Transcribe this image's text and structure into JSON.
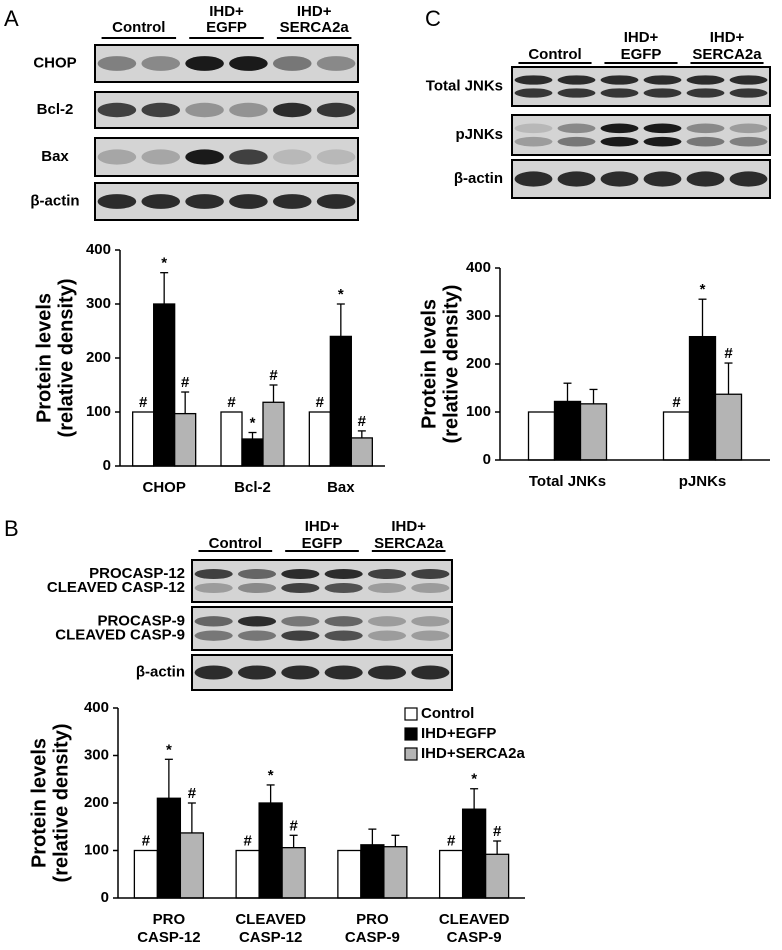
{
  "blots": [
    {
      "letter": "A",
      "groups": [
        [
          "Control"
        ],
        [
          "IHD+",
          "EGFP"
        ],
        [
          "IHD+",
          "SERCA2a"
        ]
      ],
      "rows": [
        [
          "CHOP"
        ],
        [
          "Bcl-2"
        ],
        [
          "Bax"
        ],
        [
          "β-actin"
        ]
      ]
    },
    {
      "letter": "C",
      "groups": [
        [
          "Control"
        ],
        [
          "IHD+",
          "EGFP"
        ],
        [
          "IHD+",
          "SERCA2a"
        ]
      ],
      "rows": [
        [
          "Total JNKs"
        ],
        [
          "pJNKs"
        ],
        [
          "β-actin"
        ]
      ]
    },
    {
      "letter": "B",
      "groups": [
        [
          "Control"
        ],
        [
          "IHD+",
          "EGFP"
        ],
        [
          "IHD+",
          "SERCA2a"
        ]
      ],
      "rows": [
        [
          "PROCASP-12",
          "CLEAVED CASP-12"
        ],
        [
          "PROCASP-9",
          "CLEAVED CASP-9"
        ],
        [
          "β-actin"
        ]
      ]
    }
  ],
  "chart_data": [
    {
      "type": "bar",
      "ylabel": [
        "Protein levels",
        "(relative density)"
      ],
      "categories": [
        "CHOP",
        "Bcl-2",
        "Bax"
      ],
      "ylim": [
        0,
        400
      ],
      "yticks": [
        0,
        100,
        200,
        300,
        400
      ],
      "series": [
        {
          "name": "Control",
          "color": "#ffffff",
          "values": [
            100,
            100,
            100
          ],
          "markers": [
            "#",
            "#",
            "#"
          ]
        },
        {
          "name": "IHD+EGFP",
          "color": "#000000",
          "values": [
            300,
            50,
            240
          ],
          "errors": [
            58,
            12,
            60
          ],
          "markers": [
            "*",
            "*",
            "*"
          ]
        },
        {
          "name": "IHD+SERCA2a",
          "color": "#b4b4b4",
          "values": [
            97,
            118,
            52
          ],
          "errors": [
            40,
            32,
            13
          ],
          "markers": [
            "#",
            "#",
            "#"
          ]
        }
      ]
    },
    {
      "type": "bar",
      "ylabel": [
        "Protein levels",
        "(relative density)"
      ],
      "categories": [
        "Total JNKs",
        "pJNKs"
      ],
      "ylim": [
        0,
        400
      ],
      "yticks": [
        0,
        100,
        200,
        300,
        400
      ],
      "series": [
        {
          "name": "Control",
          "color": "#ffffff",
          "values": [
            100,
            100
          ],
          "markers": [
            null,
            "#"
          ]
        },
        {
          "name": "IHD+EGFP",
          "color": "#000000",
          "values": [
            122,
            257
          ],
          "errors": [
            38,
            78
          ],
          "markers": [
            null,
            "*"
          ]
        },
        {
          "name": "IHD+SERCA2a",
          "color": "#b4b4b4",
          "values": [
            117,
            137
          ],
          "errors": [
            30,
            65
          ],
          "markers": [
            null,
            "#"
          ]
        }
      ]
    },
    {
      "type": "bar",
      "ylabel": [
        "Protein levels",
        "(relative density)"
      ],
      "categories": [
        [
          "PRO",
          "CASP-12"
        ],
        [
          "CLEAVED",
          "CASP-12"
        ],
        [
          "PRO",
          "CASP-9"
        ],
        [
          "CLEAVED",
          "CASP-9"
        ]
      ],
      "ylim": [
        0,
        400
      ],
      "yticks": [
        0,
        100,
        200,
        300,
        400
      ],
      "legend": "upper right",
      "series": [
        {
          "name": "Control",
          "color": "#ffffff",
          "values": [
            100,
            100,
            100,
            100
          ],
          "markers": [
            "#",
            "#",
            null,
            "#"
          ]
        },
        {
          "name": "IHD+EGFP",
          "color": "#000000",
          "values": [
            210,
            200,
            112,
            187
          ],
          "errors": [
            82,
            38,
            33,
            43
          ],
          "markers": [
            "*",
            "*",
            null,
            "*"
          ]
        },
        {
          "name": "IHD+SERCA2a",
          "color": "#b4b4b4",
          "values": [
            137,
            106,
            108,
            92
          ],
          "errors": [
            63,
            26,
            24,
            28
          ],
          "markers": [
            "#",
            "#",
            null,
            "#"
          ]
        }
      ]
    }
  ]
}
